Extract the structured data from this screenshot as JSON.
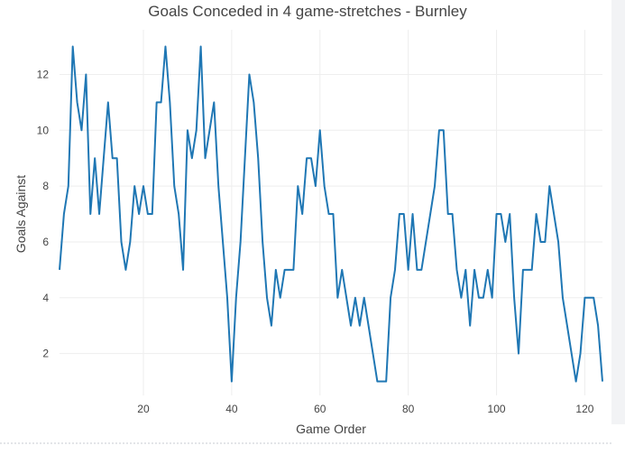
{
  "chart_data": {
    "type": "line",
    "title": "Goals Conceded in 4 game-stretches - Burnley",
    "xlabel": "Game Order",
    "ylabel": "Goals Against",
    "xlim": [
      1,
      124
    ],
    "ylim": [
      0.5,
      13.6
    ],
    "x_ticks": [
      20,
      40,
      60,
      80,
      100,
      120
    ],
    "y_ticks": [
      2,
      4,
      6,
      8,
      10,
      12
    ],
    "grid": true,
    "line_color": "#1f77b4",
    "x": [
      1,
      2,
      3,
      4,
      5,
      6,
      7,
      8,
      9,
      10,
      11,
      12,
      13,
      14,
      15,
      16,
      17,
      18,
      19,
      20,
      21,
      22,
      23,
      24,
      25,
      26,
      27,
      28,
      29,
      30,
      31,
      32,
      33,
      34,
      35,
      36,
      37,
      38,
      39,
      40,
      41,
      42,
      43,
      44,
      45,
      46,
      47,
      48,
      49,
      50,
      51,
      52,
      53,
      54,
      55,
      56,
      57,
      58,
      59,
      60,
      61,
      62,
      63,
      64,
      65,
      66,
      67,
      68,
      69,
      70,
      71,
      72,
      73,
      74,
      75,
      76,
      77,
      78,
      79,
      80,
      81,
      82,
      83,
      84,
      85,
      86,
      87,
      88,
      89,
      90,
      91,
      92,
      93,
      94,
      95,
      96,
      97,
      98,
      99,
      100,
      101,
      102,
      103,
      104,
      105,
      106,
      107,
      108,
      109,
      110,
      111,
      112,
      113,
      114,
      115,
      116,
      117,
      118,
      119,
      120,
      121,
      122,
      123,
      124
    ],
    "y": [
      5,
      7,
      8,
      13,
      11,
      10,
      12,
      7,
      9,
      7,
      9,
      11,
      9,
      9,
      6,
      5,
      6,
      8,
      7,
      8,
      7,
      7,
      11,
      11,
      13,
      11,
      8,
      7,
      5,
      10,
      9,
      10,
      13,
      9,
      10,
      11,
      8,
      6,
      4,
      1,
      4,
      6,
      9,
      12,
      11,
      9,
      6,
      4,
      3,
      5,
      4,
      5,
      5,
      5,
      8,
      7,
      9,
      9,
      8,
      10,
      8,
      7,
      7,
      4,
      5,
      4,
      3,
      4,
      3,
      4,
      3,
      2,
      1,
      1,
      1,
      4,
      5,
      7,
      7,
      5,
      7,
      5,
      5,
      6,
      7,
      8,
      10,
      10,
      7,
      7,
      5,
      4,
      5,
      3,
      5,
      4,
      4,
      5,
      4,
      7,
      7,
      6,
      7,
      4,
      2,
      5,
      5,
      5,
      7,
      6,
      6,
      8,
      7,
      6,
      4,
      3,
      2,
      1,
      2,
      4,
      4,
      4,
      3,
      1
    ]
  }
}
